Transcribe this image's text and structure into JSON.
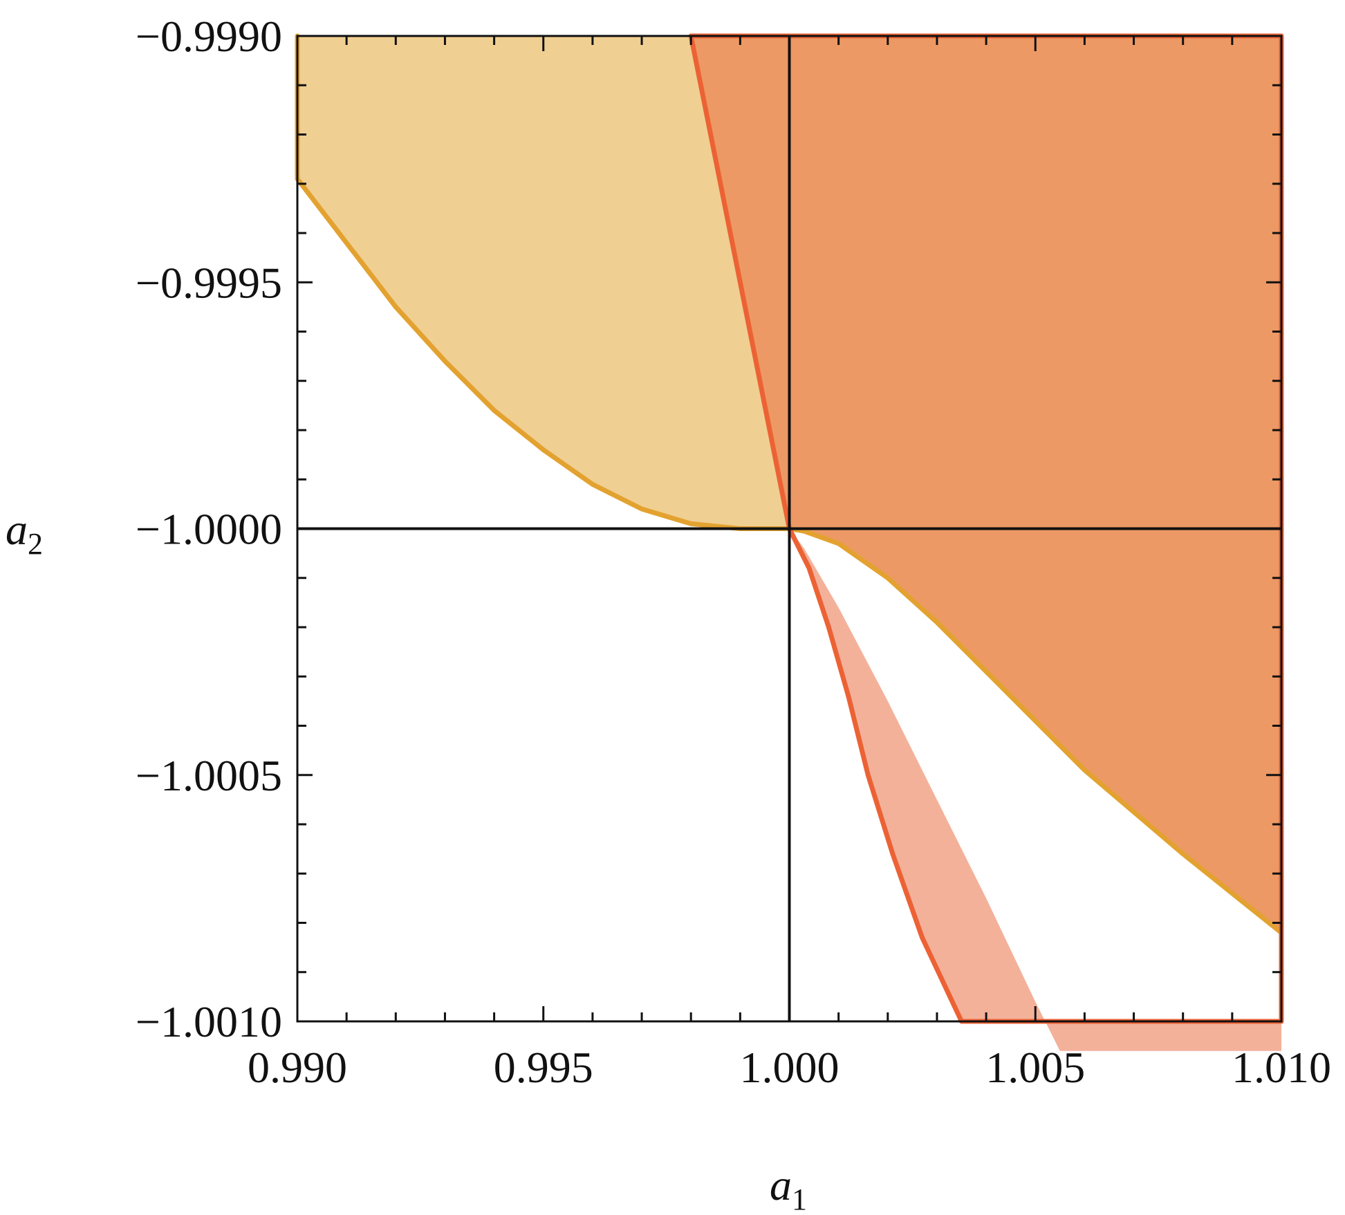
{
  "chart_data": {
    "type": "area",
    "title": "",
    "xlabel": "a",
    "xlabel_sub": "1",
    "ylabel": "a",
    "ylabel_sub": "2",
    "xlim": [
      0.99,
      1.01
    ],
    "ylim": [
      -1.001,
      -0.999
    ],
    "x_ticks": [
      {
        "value": 0.99,
        "label": "0.990"
      },
      {
        "value": 0.995,
        "label": "0.995"
      },
      {
        "value": 1.0,
        "label": "1.000"
      },
      {
        "value": 1.005,
        "label": "1.005"
      },
      {
        "value": 1.01,
        "label": "1.010"
      }
    ],
    "y_ticks": [
      {
        "value": -0.999,
        "label": "−0.9990"
      },
      {
        "value": -0.9995,
        "label": "−0.9995"
      },
      {
        "value": -1.0,
        "label": "−1.0000"
      },
      {
        "value": -1.0005,
        "label": "−1.0005"
      },
      {
        "value": -1.001,
        "label": "−1.0010"
      }
    ],
    "x_minor_step": 0.001,
    "y_minor_step": 0.0001,
    "reference_lines": {
      "x": 1.0,
      "y": -1.0
    },
    "grid": false,
    "legend": "none",
    "regions": [
      {
        "name": "",
        "fill": "#f0cf92",
        "stroke": "#e3a230",
        "boundary": [
          [
            0.99,
            -0.999
          ],
          [
            0.998,
            -0.999
          ],
          [
            1.0,
            -1.0
          ],
          [
            0.999,
            -1.0
          ],
          [
            0.998,
            -0.99999
          ],
          [
            0.997,
            -0.99996
          ],
          [
            0.996,
            -0.99991
          ],
          [
            0.995,
            -0.99984
          ],
          [
            0.994,
            -0.99976
          ],
          [
            0.993,
            -0.99966
          ],
          [
            0.992,
            -0.99955
          ],
          [
            0.991,
            -0.99942
          ],
          [
            0.99,
            -0.99929
          ]
        ]
      },
      {
        "name": "",
        "fill": "#f4b19a",
        "stroke": "#ec6235",
        "boundary": [
          [
            1.0,
            -1.0
          ],
          [
            1.0003,
            -1.00004
          ],
          [
            1.001,
            -1.00016
          ],
          [
            1.002,
            -1.00035
          ],
          [
            1.003,
            -1.00055
          ],
          [
            1.004,
            -1.00075
          ],
          [
            1.005,
            -1.00096
          ],
          [
            1.0055,
            -1.00106
          ],
          [
            1.01,
            -1.00106
          ],
          [
            1.01,
            -1.001
          ],
          [
            1.0035,
            -1.001
          ],
          [
            1.0027,
            -1.00083
          ],
          [
            1.0021,
            -1.00066
          ],
          [
            1.0016,
            -1.0005
          ],
          [
            1.0012,
            -1.00034
          ],
          [
            1.0008,
            -1.0002
          ],
          [
            1.0004,
            -1.00008
          ]
        ]
      },
      {
        "name": "",
        "fill": "#ed9965",
        "stroke": "#ec6235",
        "boundary": [
          [
            0.998,
            -0.999
          ],
          [
            1.01,
            -0.999
          ],
          [
            1.01,
            -1.00082
          ],
          [
            1.008,
            -1.00066
          ],
          [
            1.006,
            -1.00049
          ],
          [
            1.005,
            -1.00039
          ],
          [
            1.004,
            -1.00029
          ],
          [
            1.003,
            -1.00019
          ],
          [
            1.002,
            -1.0001
          ],
          [
            1.001,
            -1.00003
          ],
          [
            1.0003,
            -1.000005
          ],
          [
            1.0,
            -1.0
          ]
        ]
      }
    ],
    "curves": [
      {
        "name": "",
        "color": "#e3a230",
        "points": [
          [
            0.99,
            -0.99929
          ],
          [
            0.991,
            -0.99942
          ],
          [
            0.992,
            -0.99955
          ],
          [
            0.993,
            -0.99966
          ],
          [
            0.994,
            -0.99976
          ],
          [
            0.995,
            -0.99984
          ],
          [
            0.996,
            -0.99991
          ],
          [
            0.997,
            -0.99996
          ],
          [
            0.998,
            -0.99999
          ],
          [
            0.999,
            -1.0
          ],
          [
            1.0,
            -1.0
          ],
          [
            1.0003,
            -1.000005
          ],
          [
            1.001,
            -1.00003
          ],
          [
            1.002,
            -1.0001
          ],
          [
            1.003,
            -1.00019
          ],
          [
            1.004,
            -1.00029
          ],
          [
            1.005,
            -1.00039
          ],
          [
            1.006,
            -1.00049
          ],
          [
            1.008,
            -1.00066
          ],
          [
            1.01,
            -1.00082
          ]
        ]
      },
      {
        "name": "",
        "color": "#e3a230",
        "points": [
          [
            0.99,
            -0.999
          ],
          [
            0.99,
            -0.99929
          ]
        ]
      },
      {
        "name": "",
        "color": "#ec6235",
        "points": [
          [
            0.998,
            -0.999
          ],
          [
            1.0,
            -1.0
          ]
        ]
      },
      {
        "name": "",
        "color": "#ec6235",
        "points": [
          [
            1.0,
            -1.0
          ],
          [
            1.0004,
            -1.00008
          ],
          [
            1.0008,
            -1.0002
          ],
          [
            1.0012,
            -1.00034
          ],
          [
            1.0016,
            -1.0005
          ],
          [
            1.0021,
            -1.00066
          ],
          [
            1.0027,
            -1.00083
          ],
          [
            1.0035,
            -1.001
          ]
        ]
      },
      {
        "name": "",
        "color": "#ec6235",
        "points": [
          [
            0.998,
            -0.999
          ],
          [
            1.01,
            -0.999
          ],
          [
            1.01,
            -1.001
          ],
          [
            1.0035,
            -1.001
          ]
        ]
      }
    ]
  }
}
